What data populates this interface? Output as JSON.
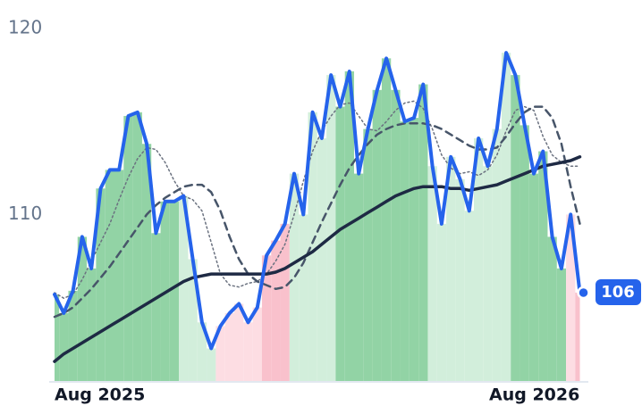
{
  "chart_data": {
    "type": "line",
    "categories": [
      "Aug 2025",
      null,
      null,
      null,
      null,
      null,
      null,
      null,
      null,
      null,
      null,
      null,
      null,
      null,
      null,
      null,
      null,
      null,
      null,
      null,
      null,
      null,
      null,
      null,
      null,
      null,
      null,
      null,
      null,
      null,
      null,
      null,
      null,
      null,
      null,
      null,
      null,
      null,
      null,
      null,
      null,
      null,
      null,
      null,
      null,
      null,
      null,
      null,
      null,
      null,
      null,
      null,
      "Aug 2026",
      null,
      null,
      null,
      null,
      null
    ],
    "ylim": [
      101,
      120.5
    ],
    "yticks": [
      110,
      120
    ],
    "bar_colors": [
      "#92d3a5",
      "#92d3a5",
      "#92d3a5",
      "#92d3a5",
      "#92d3a5",
      "#92d3a5",
      "#92d3a5",
      "#92d3a5",
      "#92d3a5",
      "#92d3a5",
      "#92d3a5",
      "#92d3a5",
      "#92d3a5",
      "#92d3a5",
      "#d2eedb",
      "#d2eedb",
      "#d2eedb",
      "#d2eedb",
      "#fddde3",
      "#fddde3",
      "#fddde3",
      "#fddde3",
      "#fddde3",
      "#f9c1cc",
      "#f9c1cc",
      "#f9c1cc",
      "#d2eedb",
      "#d2eedb",
      "#d2eedb",
      "#d2eedb",
      "#d2eedb",
      "#92d3a5",
      "#92d3a5",
      "#92d3a5",
      "#92d3a5",
      "#92d3a5",
      "#92d3a5",
      "#92d3a5",
      "#92d3a5",
      "#92d3a5",
      "#92d3a5",
      "#d2eedb",
      "#d2eedb",
      "#d2eedb",
      "#d2eedb",
      "#d2eedb",
      "#d2eedb",
      "#d2eedb",
      "#d2eedb",
      "#d2eedb",
      "#92d3a5",
      "#92d3a5",
      "#92d3a5",
      "#92d3a5",
      "#92d3a5",
      "#92d3a5",
      "#fddde3",
      "#f9c1cc"
    ],
    "series": [
      {
        "color": "#2563eb",
        "width": 4,
        "dash": "none",
        "values": [
          105.7,
          104.7,
          105.9,
          108.8,
          107.1,
          111.4,
          112.4,
          112.4,
          115.3,
          115.5,
          113.8,
          109,
          110.7,
          110.7,
          111,
          107.6,
          104.2,
          102.8,
          104,
          104.7,
          105.2,
          104.2,
          105,
          107.8,
          108.6,
          109.5,
          112.2,
          110,
          115.5,
          114.1,
          117.5,
          115.8,
          117.7,
          112.2,
          114.6,
          116.7,
          118.4,
          116.7,
          115,
          115.2,
          117,
          112.6,
          109.5,
          113.1,
          111.9,
          110.2,
          114.1,
          112.6,
          114.6,
          118.7,
          117.5,
          114.8,
          112.2,
          113.4,
          108.8,
          107.1,
          110,
          105.8
        ],
        "value_labels": [
          null,
          null,
          null,
          null,
          null,
          null,
          null,
          null,
          null,
          null,
          null,
          null,
          null,
          null,
          null,
          null,
          null,
          null,
          null,
          null,
          null,
          null,
          null,
          null,
          null,
          null,
          null,
          null,
          null,
          null,
          null,
          null,
          null,
          null,
          null,
          null,
          null,
          null,
          null,
          null,
          null,
          null,
          null,
          null,
          null,
          null,
          null,
          null,
          null,
          null,
          null,
          null,
          null,
          null,
          null,
          null,
          null,
          "106"
        ]
      },
      {
        "color": "#1e2a44",
        "width": 3.5,
        "dash": "none",
        "values": [
          102.1,
          102.5,
          102.8,
          103.1,
          103.4,
          103.7,
          104,
          104.3,
          104.6,
          104.9,
          105.2,
          105.5,
          105.8,
          106.1,
          106.4,
          106.6,
          106.7,
          106.8,
          106.8,
          106.8,
          106.8,
          106.8,
          106.8,
          106.8,
          106.9,
          107.1,
          107.4,
          107.7,
          108,
          108.4,
          108.8,
          109.2,
          109.5,
          109.8,
          110.1,
          110.4,
          110.7,
          111,
          111.2,
          111.4,
          111.5,
          111.5,
          111.5,
          111.4,
          111.4,
          111.3,
          111.4,
          111.5,
          111.6,
          111.8,
          112,
          112.2,
          112.4,
          112.6,
          112.7,
          112.8,
          112.9,
          113.1
        ]
      },
      {
        "color": "#475569",
        "width": 2.5,
        "dash": "8 6",
        "values": [
          104.5,
          104.7,
          105,
          105.5,
          106,
          106.6,
          107.2,
          107.9,
          108.6,
          109.3,
          110,
          110.5,
          110.9,
          111.2,
          111.5,
          111.6,
          111.6,
          111.2,
          110.2,
          108.8,
          107.6,
          106.8,
          106.4,
          106.2,
          106,
          106.1,
          106.6,
          107.4,
          108.5,
          109.6,
          110.6,
          111.6,
          112.5,
          113.2,
          113.8,
          114.3,
          114.6,
          114.8,
          114.9,
          114.9,
          114.9,
          114.8,
          114.6,
          114.3,
          114,
          113.7,
          113.5,
          113.5,
          113.6,
          114.2,
          114.9,
          115.5,
          115.8,
          115.8,
          115.2,
          113.8,
          111.5,
          109.5
        ]
      },
      {
        "color": "#6b7280",
        "width": 1.5,
        "dash": "2 3",
        "values": [
          105.8,
          105.5,
          105.7,
          106.5,
          107.5,
          108.5,
          109.5,
          110.8,
          112,
          113,
          113.6,
          113.5,
          112.8,
          111.8,
          111,
          110.8,
          110.2,
          108.5,
          106.8,
          106.2,
          106.1,
          106.3,
          106.4,
          106.8,
          107.5,
          108.4,
          110,
          111.8,
          113.4,
          114.5,
          115.3,
          115.9,
          116,
          115.3,
          114.6,
          114.5,
          115,
          115.6,
          116,
          116.1,
          115.7,
          114.6,
          113.2,
          112.5,
          112.2,
          112.3,
          112.1,
          112.4,
          113.2,
          114.5,
          115.6,
          115.8,
          115.6,
          114.2,
          113.2,
          112.8,
          112.6,
          112.6
        ]
      }
    ]
  }
}
